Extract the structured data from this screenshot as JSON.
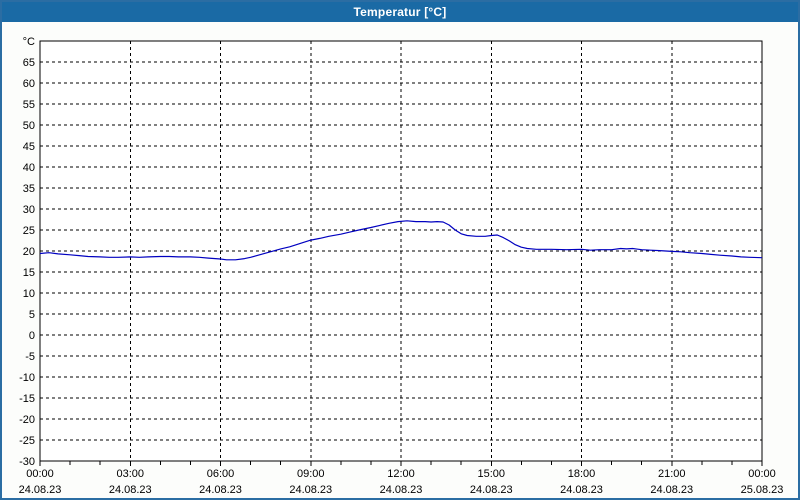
{
  "window": {
    "title": "Temperatur [°C]",
    "titlebar_color": "#1a6aa5",
    "frame_color": "#2b6da3",
    "content_background": "#fcfdfb"
  },
  "chart_data": {
    "type": "line",
    "title": "Temperatur [°C]",
    "unit_label": "°C",
    "plot_background": "#ffffff",
    "border_color": "#000000",
    "grid": {
      "style": "dashed",
      "color": "#000000",
      "dash": "3 3"
    },
    "x_axis": {
      "range_hours": [
        0,
        24
      ],
      "minor_tick_hours": 1,
      "major_tick_hours": 3,
      "major_ticks": [
        {
          "hour": 0,
          "time": "00:00",
          "date": "24.08.23"
        },
        {
          "hour": 3,
          "time": "03:00",
          "date": "24.08.23"
        },
        {
          "hour": 6,
          "time": "06:00",
          "date": "24.08.23"
        },
        {
          "hour": 9,
          "time": "09:00",
          "date": "24.08.23"
        },
        {
          "hour": 12,
          "time": "12:00",
          "date": "24.08.23"
        },
        {
          "hour": 15,
          "time": "15:00",
          "date": "24.08.23"
        },
        {
          "hour": 18,
          "time": "18:00",
          "date": "24.08.23"
        },
        {
          "hour": 21,
          "time": "21:00",
          "date": "24.08.23"
        },
        {
          "hour": 24,
          "time": "00:00",
          "date": "25.08.23"
        }
      ]
    },
    "y_axis": {
      "min": -30,
      "max": 70,
      "grid_step": 5,
      "tick_labels": [
        65,
        60,
        55,
        50,
        45,
        40,
        35,
        30,
        25,
        20,
        15,
        10,
        5,
        0,
        -5,
        -10,
        -15,
        -20,
        -25,
        -30
      ]
    },
    "series": [
      {
        "name": "Temperatur",
        "color": "#0000c0",
        "points": [
          [
            0.0,
            19.4
          ],
          [
            0.3,
            19.6
          ],
          [
            0.6,
            19.3
          ],
          [
            1.0,
            19.1
          ],
          [
            1.3,
            18.9
          ],
          [
            1.6,
            18.7
          ],
          [
            2.0,
            18.6
          ],
          [
            2.3,
            18.5
          ],
          [
            2.6,
            18.5
          ],
          [
            3.0,
            18.6
          ],
          [
            3.3,
            18.5
          ],
          [
            3.6,
            18.6
          ],
          [
            4.0,
            18.7
          ],
          [
            4.3,
            18.7
          ],
          [
            4.6,
            18.6
          ],
          [
            5.0,
            18.6
          ],
          [
            5.3,
            18.5
          ],
          [
            5.6,
            18.3
          ],
          [
            6.0,
            18.1
          ],
          [
            6.2,
            17.9
          ],
          [
            6.5,
            17.9
          ],
          [
            6.8,
            18.2
          ],
          [
            7.0,
            18.5
          ],
          [
            7.3,
            19.1
          ],
          [
            7.6,
            19.7
          ],
          [
            8.0,
            20.5
          ],
          [
            8.3,
            21.0
          ],
          [
            8.6,
            21.7
          ],
          [
            9.0,
            22.6
          ],
          [
            9.3,
            23.0
          ],
          [
            9.6,
            23.5
          ],
          [
            10.0,
            24.0
          ],
          [
            10.3,
            24.5
          ],
          [
            10.6,
            25.0
          ],
          [
            11.0,
            25.6
          ],
          [
            11.3,
            26.1
          ],
          [
            11.6,
            26.6
          ],
          [
            11.9,
            27.0
          ],
          [
            12.2,
            27.2
          ],
          [
            12.5,
            27.0
          ],
          [
            12.8,
            27.0
          ],
          [
            13.0,
            26.9
          ],
          [
            13.2,
            27.0
          ],
          [
            13.4,
            26.9
          ],
          [
            13.6,
            26.2
          ],
          [
            13.8,
            25.0
          ],
          [
            14.0,
            24.1
          ],
          [
            14.2,
            23.7
          ],
          [
            14.5,
            23.5
          ],
          [
            14.8,
            23.5
          ],
          [
            15.0,
            23.7
          ],
          [
            15.2,
            23.8
          ],
          [
            15.4,
            23.2
          ],
          [
            15.6,
            22.4
          ],
          [
            15.8,
            21.5
          ],
          [
            16.0,
            20.9
          ],
          [
            16.2,
            20.6
          ],
          [
            16.5,
            20.4
          ],
          [
            17.0,
            20.4
          ],
          [
            17.5,
            20.3
          ],
          [
            18.0,
            20.4
          ],
          [
            18.3,
            20.2
          ],
          [
            18.6,
            20.3
          ],
          [
            19.0,
            20.3
          ],
          [
            19.3,
            20.6
          ],
          [
            19.5,
            20.5
          ],
          [
            19.7,
            20.6
          ],
          [
            20.0,
            20.3
          ],
          [
            20.3,
            20.2
          ],
          [
            20.6,
            20.1
          ],
          [
            21.0,
            19.9
          ],
          [
            21.3,
            19.8
          ],
          [
            21.6,
            19.6
          ],
          [
            22.0,
            19.4
          ],
          [
            22.3,
            19.2
          ],
          [
            22.6,
            19.0
          ],
          [
            23.0,
            18.8
          ],
          [
            23.3,
            18.6
          ],
          [
            23.6,
            18.5
          ],
          [
            24.0,
            18.4
          ]
        ]
      }
    ]
  }
}
